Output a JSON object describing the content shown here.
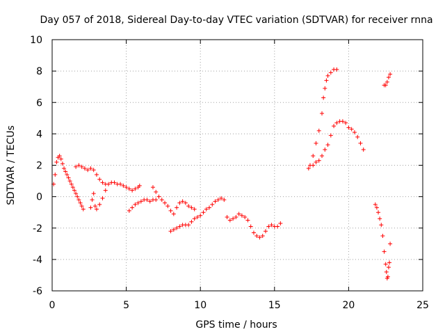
{
  "chart_data": {
    "type": "scatter",
    "title": "Day 057 of 2018, Sidereal Day-to-day VTEC variation (SDTVAR) for receiver rnna",
    "xlabel": "GPS time / hours",
    "ylabel": "SDTVAR / TECUs",
    "xlim": [
      0,
      25
    ],
    "ylim": [
      -6,
      10
    ],
    "xticks": [
      "0",
      "5",
      "10",
      "15",
      "20",
      "25"
    ],
    "yticks": [
      "-6",
      "-4",
      "-2",
      "0",
      "2",
      "4",
      "6",
      "8",
      "10"
    ],
    "grid": true,
    "marker": "plus",
    "color": "#ff0000",
    "series": [
      {
        "points": [
          [
            0.1,
            0.8
          ],
          [
            0.2,
            1.4
          ],
          [
            0.3,
            2.2
          ],
          [
            0.4,
            2.5
          ],
          [
            0.5,
            2.6
          ],
          [
            0.6,
            2.4
          ],
          [
            0.7,
            2.1
          ],
          [
            0.8,
            1.8
          ],
          [
            0.9,
            1.6
          ],
          [
            1.0,
            1.4
          ],
          [
            1.1,
            1.2
          ],
          [
            1.2,
            1.0
          ],
          [
            1.3,
            0.8
          ],
          [
            1.4,
            0.6
          ],
          [
            1.5,
            0.4
          ],
          [
            1.6,
            0.2
          ],
          [
            1.7,
            0.0
          ],
          [
            1.8,
            -0.2
          ],
          [
            1.9,
            -0.4
          ],
          [
            2.0,
            -0.6
          ],
          [
            2.1,
            -0.8
          ],
          [
            1.6,
            1.9
          ],
          [
            1.8,
            2.0
          ],
          [
            2.0,
            1.9
          ],
          [
            2.2,
            1.8
          ],
          [
            2.4,
            1.7
          ],
          [
            2.6,
            1.8
          ],
          [
            2.8,
            1.7
          ],
          [
            3.0,
            1.4
          ],
          [
            3.2,
            1.1
          ],
          [
            3.4,
            0.9
          ],
          [
            3.6,
            0.8
          ],
          [
            2.6,
            -0.7
          ],
          [
            2.7,
            -0.2
          ],
          [
            2.8,
            0.2
          ],
          [
            2.9,
            -0.6
          ],
          [
            3.0,
            -0.8
          ],
          [
            3.2,
            -0.5
          ],
          [
            3.4,
            -0.1
          ],
          [
            3.6,
            0.4
          ],
          [
            3.8,
            0.8
          ],
          [
            4.0,
            0.9
          ],
          [
            4.2,
            0.9
          ],
          [
            4.4,
            0.8
          ],
          [
            4.6,
            0.8
          ],
          [
            4.8,
            0.7
          ],
          [
            5.0,
            0.6
          ],
          [
            5.2,
            0.5
          ],
          [
            5.4,
            0.4
          ],
          [
            5.6,
            0.5
          ],
          [
            5.8,
            0.6
          ],
          [
            5.9,
            0.7
          ],
          [
            5.2,
            -0.9
          ],
          [
            5.4,
            -0.7
          ],
          [
            5.6,
            -0.5
          ],
          [
            5.8,
            -0.4
          ],
          [
            6.0,
            -0.3
          ],
          [
            6.2,
            -0.2
          ],
          [
            6.4,
            -0.2
          ],
          [
            6.6,
            -0.3
          ],
          [
            6.8,
            -0.2
          ],
          [
            7.0,
            -0.2
          ],
          [
            6.8,
            0.6
          ],
          [
            7.0,
            0.3
          ],
          [
            7.2,
            0.0
          ],
          [
            7.4,
            -0.2
          ],
          [
            7.6,
            -0.4
          ],
          [
            7.8,
            -0.6
          ],
          [
            8.0,
            -0.9
          ],
          [
            8.2,
            -1.1
          ],
          [
            8.4,
            -0.7
          ],
          [
            8.6,
            -0.4
          ],
          [
            8.8,
            -0.3
          ],
          [
            9.0,
            -0.4
          ],
          [
            9.2,
            -0.6
          ],
          [
            9.4,
            -0.7
          ],
          [
            9.6,
            -0.8
          ],
          [
            8.0,
            -2.2
          ],
          [
            8.2,
            -2.1
          ],
          [
            8.4,
            -2.0
          ],
          [
            8.6,
            -1.9
          ],
          [
            8.8,
            -1.8
          ],
          [
            9.0,
            -1.8
          ],
          [
            9.2,
            -1.8
          ],
          [
            9.4,
            -1.6
          ],
          [
            9.6,
            -1.4
          ],
          [
            9.8,
            -1.3
          ],
          [
            10.0,
            -1.2
          ],
          [
            10.2,
            -1.0
          ],
          [
            10.4,
            -0.8
          ],
          [
            10.6,
            -0.7
          ],
          [
            10.8,
            -0.5
          ],
          [
            11.0,
            -0.3
          ],
          [
            11.2,
            -0.2
          ],
          [
            11.4,
            -0.1
          ],
          [
            11.6,
            -0.2
          ],
          [
            11.8,
            -1.3
          ],
          [
            12.0,
            -1.5
          ],
          [
            12.2,
            -1.4
          ],
          [
            12.4,
            -1.3
          ],
          [
            12.6,
            -1.1
          ],
          [
            12.8,
            -1.2
          ],
          [
            13.0,
            -1.3
          ],
          [
            13.2,
            -1.5
          ],
          [
            13.4,
            -1.9
          ],
          [
            13.6,
            -2.3
          ],
          [
            13.8,
            -2.5
          ],
          [
            14.0,
            -2.6
          ],
          [
            14.2,
            -2.5
          ],
          [
            14.4,
            -2.2
          ],
          [
            14.6,
            -1.9
          ],
          [
            14.8,
            -1.8
          ],
          [
            15.0,
            -1.9
          ],
          [
            15.2,
            -1.9
          ],
          [
            15.4,
            -1.7
          ],
          [
            17.3,
            1.8
          ],
          [
            17.4,
            2.0
          ],
          [
            17.6,
            2.6
          ],
          [
            17.8,
            3.4
          ],
          [
            18.0,
            4.2
          ],
          [
            18.2,
            5.3
          ],
          [
            18.3,
            6.3
          ],
          [
            18.4,
            6.9
          ],
          [
            18.5,
            7.4
          ],
          [
            18.6,
            7.7
          ],
          [
            18.8,
            7.9
          ],
          [
            19.0,
            8.1
          ],
          [
            19.2,
            8.1
          ],
          [
            17.6,
            2.0
          ],
          [
            17.8,
            2.2
          ],
          [
            18.0,
            2.3
          ],
          [
            18.2,
            2.6
          ],
          [
            18.4,
            3.0
          ],
          [
            18.6,
            3.3
          ],
          [
            18.8,
            3.9
          ],
          [
            19.0,
            4.5
          ],
          [
            19.2,
            4.7
          ],
          [
            19.4,
            4.8
          ],
          [
            19.6,
            4.8
          ],
          [
            19.8,
            4.7
          ],
          [
            20.0,
            4.4
          ],
          [
            20.2,
            4.3
          ],
          [
            20.4,
            4.1
          ],
          [
            20.6,
            3.8
          ],
          [
            20.8,
            3.4
          ],
          [
            21.0,
            3.0
          ],
          [
            21.8,
            -0.5
          ],
          [
            21.9,
            -0.7
          ],
          [
            22.0,
            -1.0
          ],
          [
            22.1,
            -1.4
          ],
          [
            22.2,
            -1.8
          ],
          [
            22.3,
            -2.5
          ],
          [
            22.4,
            -3.5
          ],
          [
            22.5,
            -4.3
          ],
          [
            22.55,
            -4.8
          ],
          [
            22.6,
            -5.2
          ],
          [
            22.65,
            -5.1
          ],
          [
            22.7,
            -4.5
          ],
          [
            22.75,
            -4.2
          ],
          [
            22.8,
            -3.0
          ],
          [
            22.4,
            7.1
          ],
          [
            22.5,
            7.1
          ],
          [
            22.6,
            7.3
          ],
          [
            22.7,
            7.6
          ],
          [
            22.8,
            7.8
          ]
        ]
      }
    ]
  }
}
